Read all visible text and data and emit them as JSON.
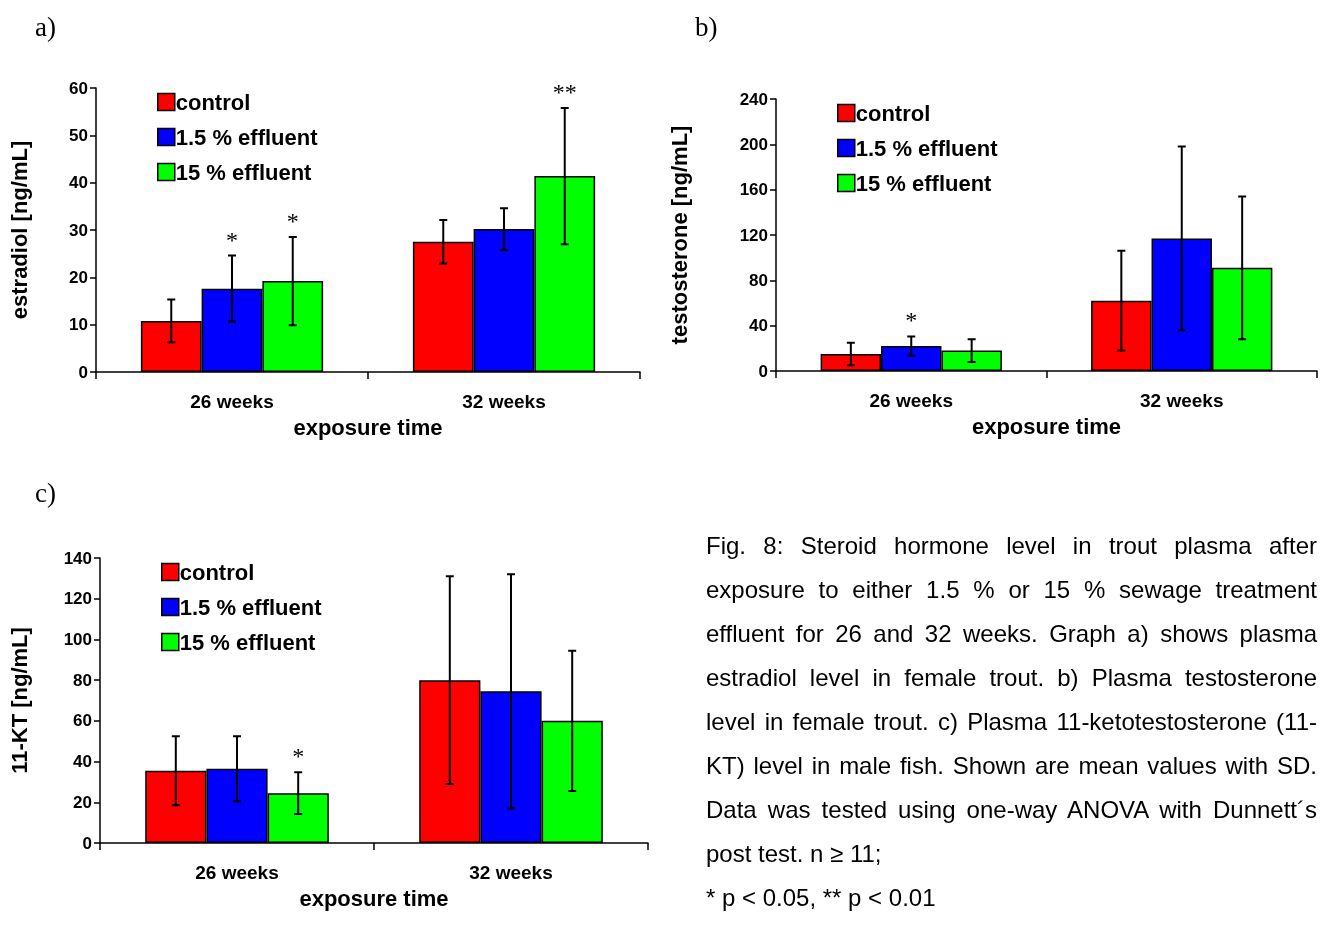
{
  "chart_data": [
    {
      "type": "bar",
      "title": "a)",
      "xlabel": "exposure time",
      "ylabel": "estradiol [ng/mL]",
      "categories": [
        "26 weeks",
        "32 weeks"
      ],
      "ylim": [
        0,
        60
      ],
      "yticks": [
        0,
        10,
        20,
        30,
        40,
        50,
        60
      ],
      "legend": "top left",
      "series": [
        {
          "name": "control",
          "color": "#ff0000",
          "values": [
            10.8,
            27.5
          ],
          "errors": [
            4.5,
            4.6
          ]
        },
        {
          "name": "1.5 % effluent",
          "color": "#0000ff",
          "values": [
            17.6,
            30.2
          ],
          "errors": [
            7,
            4.4
          ],
          "value_labels": [
            "*",
            null
          ]
        },
        {
          "name": "15 % effluent",
          "color": "#00ff00",
          "values": [
            19.2,
            41.4
          ],
          "errors": [
            9.3,
            14.4
          ],
          "value_labels": [
            "*",
            "**"
          ]
        }
      ]
    },
    {
      "type": "bar",
      "title": "b)",
      "xlabel": "exposure time",
      "ylabel": "testosterone [ng/mL]",
      "categories": [
        "26 weeks",
        "32 weeks"
      ],
      "ylim": [
        0,
        240
      ],
      "yticks": [
        0,
        40,
        80,
        120,
        160,
        200,
        240
      ],
      "legend": "top left",
      "series": [
        {
          "name": "control",
          "color": "#ff0000",
          "values": [
            15,
            62
          ],
          "errors": [
            10,
            44
          ]
        },
        {
          "name": "1.5 % effluent",
          "color": "#0000ff",
          "values": [
            22,
            117
          ],
          "errors": [
            8.5,
            81
          ],
          "value_labels": [
            "*",
            null
          ]
        },
        {
          "name": "15 % effluent",
          "color": "#00ff00",
          "values": [
            18,
            91
          ],
          "errors": [
            10,
            63
          ]
        }
      ]
    },
    {
      "type": "bar",
      "title": "c)",
      "xlabel": "exposure time",
      "ylabel": "11-KT [ng/mL]",
      "categories": [
        "26 weeks",
        "32 weeks"
      ],
      "ylim": [
        0,
        140
      ],
      "yticks": [
        0,
        20,
        40,
        60,
        80,
        100,
        120,
        140
      ],
      "legend": "top left",
      "series": [
        {
          "name": "control",
          "color": "#ff0000",
          "values": [
            35.5,
            80
          ],
          "errors": [
            17,
            51
          ]
        },
        {
          "name": "1.5 % effluent",
          "color": "#0000ff",
          "values": [
            36.5,
            74.5
          ],
          "errors": [
            16,
            57.5
          ]
        },
        {
          "name": "15 % effluent",
          "color": "#00ff00",
          "values": [
            24.5,
            60
          ],
          "errors": [
            10.3,
            34.5
          ],
          "value_labels": [
            "*",
            null
          ]
        }
      ]
    },
    {
      "type": "other",
      "annotations": [
        "Fig. 8: Steroid hormone level in trout plasma after exposure to either 1.5 % or 15 % sewage treatment effluent for 26 and 32 weeks. Graph a) shows plasma estradiol level in female trout. b) Plasma testosterone level in female trout. c) Plasma 11-ketotestosterone (11-KT) level in male fish. Shown are mean values with SD. Data was tested using one-way ANOVA with Dunnett´s post test. n ≥ 11;",
        "* p < 0.05, ** p < 0.01"
      ]
    }
  ]
}
